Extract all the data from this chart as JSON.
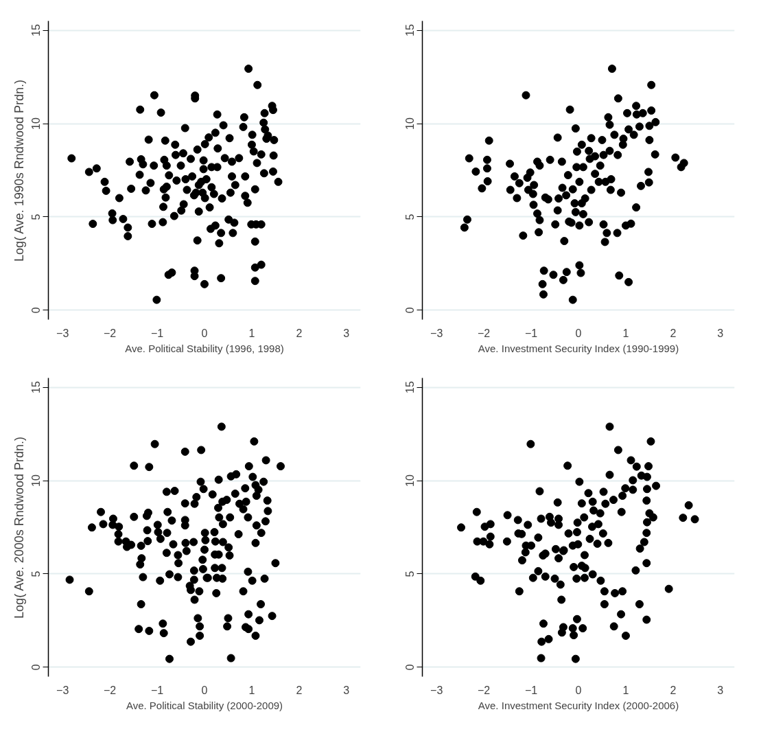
{
  "chart_data": [
    {
      "type": "scatter",
      "xlabel": "Ave. Political Stability (1996, 1998)",
      "ylabel": "Log( Ave. 1990s Rndwood Prdn.)",
      "color": "#000000",
      "marker": "circle",
      "grid": "y",
      "xlim": [
        -3.3,
        3.3
      ],
      "ylim": [
        -0.5,
        15.5
      ],
      "xticks": [
        -3,
        -2,
        -1,
        0,
        1,
        2,
        3
      ],
      "yticks": [
        0,
        5,
        10,
        15
      ],
      "x": [
        -2.81,
        -2.44,
        -2.28,
        -2.36,
        -2.11,
        -2.08,
        -1.8,
        -1.95,
        -1.94,
        -1.72,
        -1.62,
        -1.62,
        -1.58,
        -1.36,
        -1.34,
        -1.3,
        -1.37,
        -1.55,
        -1.18,
        -1.06,
        -0.92,
        -1.07,
        -1.14,
        -1.24,
        -1.11,
        -1.01,
        -0.83,
        -0.85,
        -0.8,
        -0.75,
        -0.86,
        -0.8,
        -0.82,
        -0.87,
        -0.88,
        -0.76,
        -0.69,
        -0.62,
        -0.61,
        -0.45,
        -0.5,
        -0.59,
        -0.64,
        -0.49,
        -0.44,
        -0.41,
        -0.29,
        -0.4,
        -0.37,
        -0.26,
        -0.2,
        -0.2,
        -0.15,
        -0.18,
        -0.22,
        -0.12,
        -0.15,
        -0.21,
        -0.21,
        0.0,
        -0.02,
        0.01,
        0.09,
        0.23,
        -0.02,
        -0.07,
        -0.12,
        0.04,
        -0.04,
        0.11,
        0.01,
        0.15,
        0.27,
        0.28,
        0.27,
        0.15,
        0.2,
        0.37,
        0.13,
        0.23,
        0.35,
        0.31,
        0.35,
        0.4,
        0.53,
        0.43,
        0.58,
        0.73,
        0.58,
        0.65,
        0.55,
        0.51,
        0.63,
        0.6,
        0.84,
        0.82,
        0.93,
        1.12,
        0.86,
        0.86,
        0.91,
        1.01,
        1.0,
        1.04,
        1.2,
        1.11,
        1.07,
        0.99,
        1.09,
        1.2,
        1.07,
        1.07,
        1.2,
        1.07,
        1.27,
        1.43,
        1.45,
        1.25,
        1.28,
        1.34,
        1.47,
        1.46,
        1.26,
        1.45,
        1.56,
        1.31
      ],
      "values": [
        8.14,
        7.41,
        7.6,
        4.63,
        6.88,
        6.4,
        6.01,
        5.19,
        4.83,
        4.89,
        4.43,
        3.97,
        7.96,
        10.75,
        8.09,
        7.82,
        7.26,
        6.51,
        9.14,
        11.52,
        10.59,
        7.75,
        6.82,
        6.42,
        4.63,
        0.56,
        9.09,
        8.06,
        7.75,
        7.23,
        6.48,
        6.62,
        6.04,
        5.54,
        4.72,
        1.9,
        2.02,
        8.87,
        8.32,
        8.41,
        7.75,
        6.95,
        5.05,
        5.34,
        5.68,
        9.76,
        8.11,
        7.02,
        6.45,
        7.17,
        11.5,
        11.35,
        8.61,
        6.3,
        6.16,
        5.29,
        3.74,
        2.12,
        1.83,
        1.4,
        8.03,
        8.9,
        9.26,
        9.51,
        7.56,
        6.88,
        6.71,
        7.02,
        6.3,
        5.51,
        6.01,
        7.67,
        7.67,
        8.67,
        10.49,
        6.59,
        6.23,
        5.99,
        4.36,
        4.54,
        4.14,
        3.59,
        1.72,
        9.91,
        9.22,
        8.15,
        7.96,
        8.15,
        7.17,
        6.71,
        6.3,
        4.86,
        4.69,
        4.14,
        10.34,
        9.82,
        12.94,
        12.07,
        7.17,
        6.13,
        5.76,
        9.4,
        8.87,
        8.51,
        8.35,
        7.89,
        6.48,
        4.6,
        4.6,
        4.6,
        3.68,
        2.29,
        2.44,
        1.57,
        10.56,
        10.95,
        10.73,
        10.05,
        9.69,
        9.36,
        9.12,
        8.29,
        7.34,
        7.43,
        6.88,
        9.19
      ]
    },
    {
      "type": "scatter",
      "xlabel": "Ave. Investment Security Index (1990-1999)",
      "color": "#000000",
      "marker": "circle",
      "grid": "y",
      "xlim": [
        -3.3,
        3.3
      ],
      "ylim": [
        -0.5,
        15.5
      ],
      "xticks": [
        -3,
        -2,
        -1,
        0,
        1,
        2,
        3
      ],
      "yticks": [
        0,
        5,
        10,
        15
      ],
      "x": [
        -2.41,
        -2.35,
        -2.31,
        -2.17,
        -1.89,
        -1.93,
        -1.93,
        -1.92,
        -2.04,
        -1.45,
        -1.35,
        -1.44,
        -1.3,
        -1.25,
        -1.08,
        -1.11,
        -1.17,
        -1.06,
        -0.94,
        -0.96,
        -0.95,
        -0.87,
        -0.82,
        -0.87,
        -0.82,
        -0.84,
        -0.73,
        -0.76,
        -0.74,
        -0.53,
        -0.7,
        -0.64,
        -0.6,
        -0.44,
        -0.35,
        -0.44,
        -0.49,
        -0.42,
        -0.34,
        -0.26,
        -0.32,
        -0.25,
        -0.3,
        -0.18,
        -0.06,
        -0.22,
        -0.12,
        -0.04,
        -0.08,
        -0.06,
        -0.15,
        0.02,
        0.02,
        0.05,
        -0.12,
        -0.03,
        0.07,
        0.1,
        0.02,
        0.14,
        0.1,
        0.22,
        0.22,
        0.27,
        0.24,
        0.35,
        0.27,
        0.35,
        0.46,
        0.5,
        0.53,
        0.66,
        0.43,
        0.57,
        0.68,
        0.69,
        0.53,
        0.6,
        0.56,
        0.82,
        0.86,
        1.06,
        0.63,
        0.66,
        0.71,
        0.76,
        0.84,
        0.83,
        0.95,
        0.94,
        1.03,
        1.06,
        1.17,
        1.22,
        1.23,
        1.36,
        1.54,
        1.29,
        1.54,
        1.5,
        1.63,
        1.5,
        1.62,
        1.48,
        1.49,
        1.32,
        0.9,
        1.22,
        1.0,
        1.11,
        2.05,
        2.23,
        2.17,
        -1.02,
        -0.2,
        0.07
      ],
      "values": [
        4.43,
        4.86,
        8.14,
        7.43,
        9.09,
        8.06,
        7.6,
        6.91,
        6.53,
        7.85,
        7.17,
        6.45,
        6.01,
        6.81,
        7.1,
        11.52,
        4.0,
        6.45,
        6.71,
        6.23,
        5.65,
        7.96,
        7.75,
        5.18,
        4.83,
        4.18,
        2.12,
        1.4,
        0.85,
        1.9,
        6.04,
        5.94,
        8.06,
        9.25,
        7.96,
        5.35,
        4.6,
        5.99,
        6.56,
        6.16,
        1.62,
        2.05,
        3.71,
        10.75,
        9.74,
        7.24,
        6.48,
        7.67,
        5.73,
        5.26,
        4.69,
        4.54,
        2.41,
        2.0,
        0.56,
        8.5,
        8.87,
        7.67,
        6.88,
        5.99,
        5.15,
        4.72,
        8.54,
        9.22,
        8.11,
        8.25,
        6.45,
        7.31,
        7.75,
        9.12,
        8.32,
        8.54,
        6.88,
        6.88,
        6.45,
        7.02,
        4.6,
        4.14,
        3.66,
        4.14,
        1.86,
        1.51,
        10.34,
        9.94,
        12.94,
        9.4,
        11.35,
        8.32,
        9.19,
        8.87,
        10.56,
        9.69,
        9.4,
        10.95,
        10.49,
        10.56,
        10.7,
        9.84,
        12.07,
        9.88,
        10.08,
        9.12,
        8.35,
        7.41,
        6.85,
        6.66,
        6.3,
        5.51,
        4.54,
        4.64,
        8.18,
        7.89,
        7.67,
        7.38,
        4.75,
        5.73
      ]
    },
    {
      "type": "scatter",
      "xlabel": "Ave. Political Stability (2000-2009)",
      "ylabel": "Log( Ave. 2000s Rndwood Prdn.)",
      "color": "#000000",
      "marker": "circle",
      "grid": "y",
      "xlim": [
        -3.3,
        3.3
      ],
      "ylim": [
        -0.5,
        15.5
      ],
      "xticks": [
        -3,
        -2,
        -1,
        0,
        1,
        2,
        3
      ],
      "yticks": [
        0,
        5,
        10,
        15
      ],
      "x": [
        -2.85,
        -2.44,
        -2.38,
        -2.19,
        -2.14,
        -1.93,
        -1.94,
        -1.81,
        -1.82,
        -1.82,
        -1.66,
        -1.64,
        -1.55,
        -1.49,
        -1.49,
        -1.34,
        -1.33,
        -1.36,
        -1.3,
        -1.34,
        -1.39,
        -1.17,
        -1.17,
        -1.05,
        -1.19,
        -1.22,
        -1.21,
        -1.2,
        -0.99,
        -0.98,
        -0.93,
        -0.79,
        -0.78,
        -0.69,
        -0.8,
        -0.63,
        -0.94,
        -0.8,
        -0.66,
        -0.56,
        -0.55,
        -0.74,
        -0.56,
        -0.88,
        -0.86,
        -0.74,
        -0.41,
        -0.41,
        -0.41,
        -0.41,
        -0.4,
        -0.38,
        -0.23,
        -0.22,
        -0.22,
        -0.31,
        -0.29,
        -0.11,
        -0.21,
        -0.14,
        -0.1,
        -0.1,
        -0.29,
        -0.21,
        -0.17,
        -0.07,
        -0.08,
        -0.02,
        0.01,
        0.02,
        0.0,
        -0.04,
        -0.03,
        0.07,
        0.17,
        0.3,
        0.36,
        0.21,
        0.23,
        0.22,
        0.3,
        0.22,
        0.37,
        0.26,
        0.38,
        0.25,
        0.29,
        0.38,
        0.47,
        0.31,
        0.39,
        0.54,
        0.39,
        0.51,
        0.53,
        0.56,
        0.67,
        0.65,
        0.5,
        0.48,
        0.56,
        0.72,
        0.74,
        0.82,
        0.86,
        0.88,
        0.92,
        0.94,
        1.02,
        1.05,
        1.08,
        1.14,
        1.1,
        1.1,
        1.2,
        1.08,
        1.25,
        1.3,
        1.33,
        1.34,
        1.29,
        1.61,
        1.5,
        0.92,
        1.01,
        1.27,
        0.82,
        1.19,
        0.93,
        1.16,
        1.43,
        0.87,
        0.93,
        1.08,
        0.05
      ],
      "values": [
        4.69,
        4.07,
        7.49,
        8.32,
        7.67,
        7.96,
        7.63,
        7.53,
        7.13,
        6.74,
        6.74,
        6.45,
        6.56,
        10.8,
        8.06,
        6.51,
        5.84,
        5.51,
        4.83,
        3.38,
        2.05,
        1.95,
        10.73,
        11.96,
        8.28,
        8.11,
        7.34,
        6.76,
        7.63,
        7.24,
        6.88,
        7.2,
        8.32,
        7.86,
        9.4,
        9.45,
        4.64,
        6.13,
        6.59,
        6.01,
        5.58,
        4.98,
        4.83,
        2.34,
        1.83,
        0.45,
        11.55,
        8.78,
        7.89,
        7.6,
        6.66,
        6.23,
        6.71,
        5.18,
        4.69,
        4.36,
        4.14,
        4.07,
        3.62,
        2.63,
        2.19,
        1.69,
        1.37,
        8.76,
        9.12,
        11.64,
        9.94,
        9.55,
        7.2,
        6.81,
        6.3,
        5.76,
        5.26,
        4.79,
        9.26,
        10.05,
        12.89,
        7.24,
        6.74,
        6.04,
        6.04,
        5.32,
        5.32,
        4.79,
        4.75,
        3.97,
        8.54,
        8.87,
        8.97,
        8.03,
        7.67,
        8.03,
        6.71,
        6.42,
        5.99,
        10.23,
        10.34,
        9.3,
        2.63,
        2.19,
        0.49,
        7.13,
        8.76,
        8.47,
        9.59,
        8.87,
        8.03,
        10.77,
        10.2,
        12.1,
        9.76,
        9.51,
        9.19,
        7.6,
        7.2,
        6.66,
        9.94,
        11.09,
        8.93,
        8.37,
        7.82,
        10.77,
        5.58,
        5.12,
        4.64,
        4.75,
        4.07,
        3.38,
        2.84,
        2.52,
        2.75,
        2.15,
        2.05,
        1.69,
        4.79
      ]
    },
    {
      "type": "scatter",
      "xlabel": "Ave. Investment Security Index (2000-2006)",
      "color": "#000000",
      "marker": "circle",
      "grid": "y",
      "xlim": [
        -3.3,
        3.3
      ],
      "ylim": [
        -0.5,
        15.5
      ],
      "xticks": [
        -3,
        -2,
        -1,
        0,
        1,
        2,
        3
      ],
      "yticks": [
        0,
        5,
        10,
        15
      ],
      "x": [
        -2.48,
        -2.15,
        -1.98,
        -1.86,
        -2.14,
        -2.01,
        -1.88,
        -1.86,
        -2.18,
        -2.07,
        -1.5,
        -1.28,
        -1.51,
        -1.27,
        -1.2,
        -1.07,
        -1.11,
        -1.0,
        -1.12,
        -1.19,
        -1.25,
        -1.01,
        -0.82,
        -0.85,
        -0.79,
        -0.61,
        -0.58,
        -0.7,
        -0.75,
        -0.96,
        -0.85,
        -0.7,
        -0.5,
        -0.38,
        -0.36,
        -0.74,
        -0.78,
        -0.63,
        -0.79,
        -0.44,
        -0.42,
        -0.42,
        -0.48,
        -0.42,
        -0.32,
        -0.32,
        -0.35,
        -0.23,
        -0.21,
        -0.12,
        -0.01,
        -0.1,
        -0.04,
        -0.1,
        -0.03,
        0.09,
        -0.06,
        0.02,
        0.07,
        -0.02,
        0.12,
        -0.03,
        0.13,
        0.07,
        0.14,
        0.13,
        0.3,
        0.24,
        0.4,
        0.21,
        0.3,
        0.32,
        0.29,
        0.42,
        0.46,
        0.53,
        0.57,
        0.66,
        0.66,
        0.47,
        0.55,
        0.55,
        0.52,
        0.63,
        0.74,
        0.84,
        0.93,
        0.99,
        0.91,
        0.77,
        0.93,
        0.9,
        0.75,
        1.0,
        1.11,
        1.15,
        1.23,
        1.15,
        1.33,
        1.45,
        1.48,
        1.53,
        1.45,
        1.64,
        1.44,
        1.5,
        1.58,
        1.45,
        1.44,
        1.39,
        1.3,
        1.44,
        1.21,
        1.29,
        1.44,
        1.91,
        2.33,
        2.21,
        2.46,
        -0.12,
        -0.31
      ],
      "values": [
        7.49,
        8.32,
        7.53,
        7.67,
        6.74,
        6.74,
        6.59,
        7.0,
        4.86,
        4.64,
        8.15,
        7.89,
        6.74,
        7.17,
        7.14,
        7.63,
        6.52,
        6.52,
        6.16,
        5.73,
        4.07,
        11.96,
        9.43,
        6.95,
        7.96,
        8.06,
        7.75,
        6.09,
        5.99,
        4.79,
        5.15,
        4.86,
        4.75,
        4.43,
        3.62,
        2.34,
        1.37,
        1.51,
        0.49,
        8.83,
        7.96,
        7.63,
        6.33,
        5.84,
        6.23,
        2.15,
        1.86,
        10.8,
        7.17,
        6.52,
        6.59,
        5.37,
        4.75,
        1.72,
        2.58,
        2.09,
        0.45,
        9.94,
        8.78,
        7.75,
        8.03,
        7.24,
        6.01,
        5.44,
        5.32,
        4.79,
        4.98,
        6.88,
        6.62,
        9.33,
        8.87,
        8.4,
        7.53,
        7.67,
        8.25,
        9.4,
        8.76,
        12.89,
        10.31,
        4.64,
        4.07,
        3.38,
        7.17,
        6.66,
        8.97,
        11.64,
        9.19,
        9.59,
        8.32,
        3.97,
        4.07,
        2.84,
        2.19,
        1.69,
        11.09,
        10.02,
        10.75,
        9.51,
        10.27,
        10.2,
        10.77,
        12.1,
        9.55,
        9.72,
        8.93,
        8.25,
        8.03,
        7.77,
        7.2,
        6.71,
        6.36,
        5.58,
        5.19,
        3.38,
        2.55,
        4.2,
        8.68,
        8.01,
        7.93,
        2.09,
        6.27
      ]
    }
  ]
}
